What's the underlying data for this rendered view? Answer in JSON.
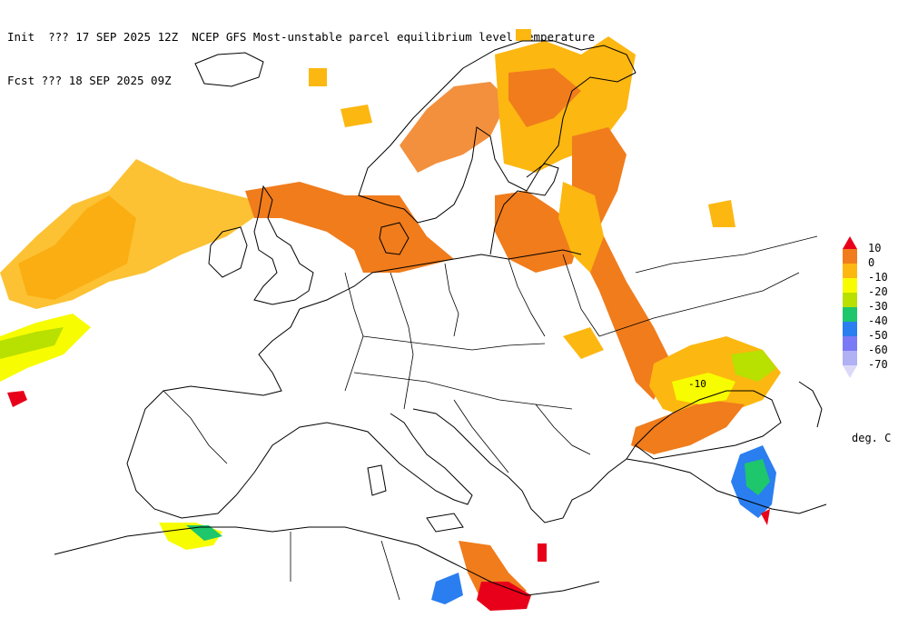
{
  "header": {
    "line1": "Init  ??? 17 SEP 2025 12Z  NCEP GFS Most-unstable parcel equilibrium level temperature",
    "line2": "Fcst ??? 18 SEP 2025 09Z"
  },
  "contour_label": "-10",
  "legend": {
    "units": "deg. C",
    "items": [
      {
        "label": "10",
        "color": "#e8001a"
      },
      {
        "label": "0",
        "color": "#f07c1c"
      },
      {
        "label": "-10",
        "color": "#fcb711"
      },
      {
        "label": "-20",
        "color": "#f8fc00"
      },
      {
        "label": "-30",
        "color": "#b8e000"
      },
      {
        "label": "-40",
        "color": "#1ec66c"
      },
      {
        "label": "-50",
        "color": "#2a7ef0"
      },
      {
        "label": "-60",
        "color": "#7a7af6"
      },
      {
        "label": "-70",
        "color": "#b0b0f4"
      }
    ],
    "low_arrow_color": "#dadaf8"
  }
}
